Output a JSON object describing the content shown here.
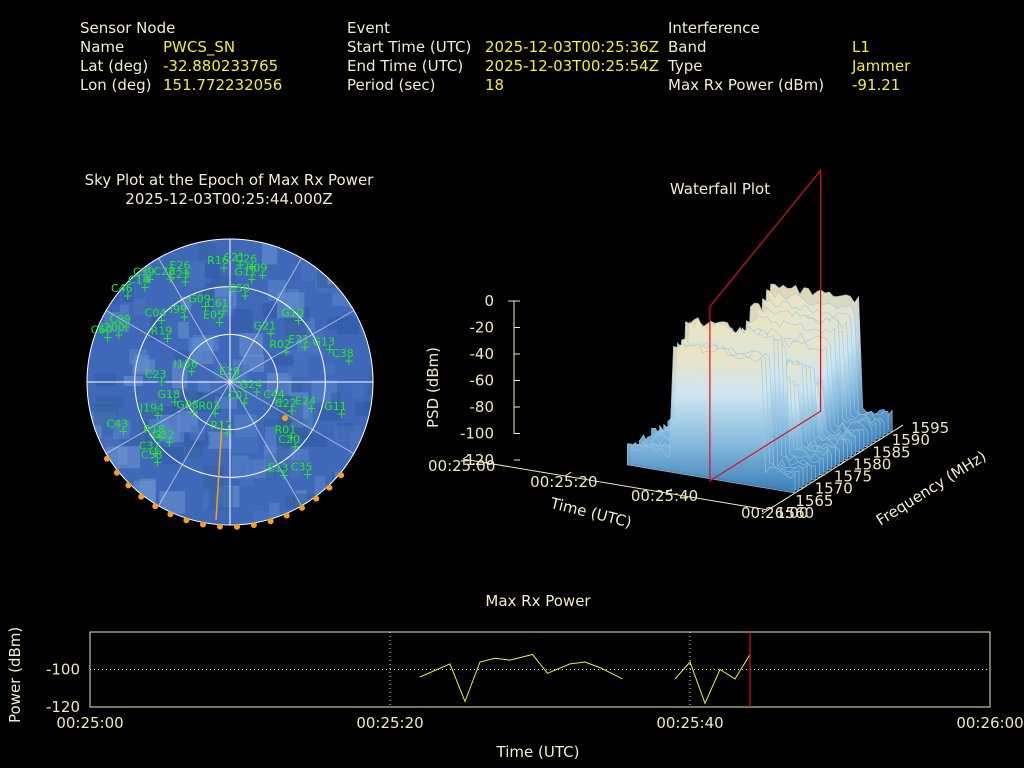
{
  "info": {
    "sensor": {
      "header": "Sensor Node",
      "name_label": "Name",
      "name_value": "PWCS_SN",
      "lat_label": "Lat (deg)",
      "lat_value": "-32.880233765",
      "lon_label": "Lon (deg)",
      "lon_value": "151.772232056"
    },
    "event": {
      "header": "Event",
      "start_label": "Start Time (UTC)",
      "start_value": "2025-12-03T00:25:36Z",
      "end_label": "End Time (UTC)",
      "end_value": "2025-12-03T00:25:54Z",
      "period_label": "Period (sec)",
      "period_value": "18"
    },
    "interference": {
      "header": "Interference",
      "band_label": "Band",
      "band_value": "L1",
      "type_label": "Type",
      "type_value": "Jammer",
      "power_label": "Max Rx Power (dBm)",
      "power_value": "-91.21"
    }
  },
  "colors": {
    "label": "#f4eccb",
    "value": "#f6ee2a",
    "satellite": "#22ee22",
    "track": "#f5a020",
    "sky_disc": "#3f68b8",
    "marker": "#dd1111",
    "axis": "#f0e8b8"
  },
  "chart_data": [
    {
      "type": "scatter",
      "title": "Sky Plot at the Epoch of Max Rx Power",
      "subtitle": "2025-12-03T00:25:44.000Z",
      "projection": "polar",
      "elevation_rings_deg": [
        0,
        30,
        60,
        90
      ],
      "satellites": [
        {
          "id": "R16",
          "az": 357,
          "el": 18
        },
        {
          "id": "C21",
          "az": 5,
          "el": 16
        },
        {
          "id": "R09",
          "az": 17,
          "el": 20
        },
        {
          "id": "C26",
          "az": 11,
          "el": 16
        },
        {
          "id": "E26",
          "az": 338,
          "el": 16
        },
        {
          "id": "C39",
          "az": 322,
          "el": 8
        },
        {
          "id": "C28",
          "az": 330,
          "el": 15
        },
        {
          "id": "E23",
          "az": 336,
          "el": 21
        },
        {
          "id": "C46",
          "az": 310,
          "el": 6
        },
        {
          "id": "C14",
          "az": 318,
          "el": 10
        },
        {
          "id": "G12",
          "az": 12,
          "el": 24
        },
        {
          "id": "C50",
          "az": 10,
          "el": 35
        },
        {
          "id": "G10",
          "az": 48,
          "el": 32
        },
        {
          "id": "G21",
          "az": 40,
          "el": 50
        },
        {
          "id": "C09",
          "az": 298,
          "el": 16
        },
        {
          "id": "C60",
          "az": 290,
          "el": 8
        },
        {
          "id": "J200",
          "az": 293,
          "el": 14
        },
        {
          "id": "C04",
          "az": 312,
          "el": 32
        },
        {
          "id": "I99",
          "az": 325,
          "el": 40
        },
        {
          "id": "G09",
          "az": 342,
          "el": 40
        },
        {
          "id": "C61",
          "az": 355,
          "el": 45
        },
        {
          "id": "E05",
          "az": 350,
          "el": 52
        },
        {
          "id": "R19",
          "az": 305,
          "el": 42
        },
        {
          "id": "R02",
          "az": 62,
          "el": 50
        },
        {
          "id": "E21",
          "az": 65,
          "el": 38
        },
        {
          "id": "G13",
          "az": 72,
          "el": 24
        },
        {
          "id": "C38",
          "az": 80,
          "el": 14
        },
        {
          "id": "I136",
          "az": 285,
          "el": 65
        },
        {
          "id": "C23",
          "az": 270,
          "el": 47
        },
        {
          "id": "G18",
          "az": 250,
          "el": 53
        },
        {
          "id": "J194",
          "az": 245,
          "el": 40
        },
        {
          "id": "C43",
          "az": 245,
          "el": 16
        },
        {
          "id": "E29",
          "az": 60,
          "el": 86
        },
        {
          "id": "G24",
          "az": 110,
          "el": 72
        },
        {
          "id": "C01",
          "az": 145,
          "el": 74
        },
        {
          "id": "R03",
          "az": 205,
          "el": 68
        },
        {
          "id": "G08",
          "az": 230,
          "el": 60
        },
        {
          "id": "C44",
          "az": 112,
          "el": 56
        },
        {
          "id": "C22",
          "az": 115,
          "el": 47
        },
        {
          "id": "E24",
          "az": 108,
          "el": 36
        },
        {
          "id": "G11",
          "az": 106,
          "el": 17
        },
        {
          "id": "R17",
          "az": 183,
          "el": 58
        },
        {
          "id": "R01",
          "az": 132,
          "el": 38
        },
        {
          "id": "C20",
          "az": 135,
          "el": 32
        },
        {
          "id": "R18",
          "az": 232,
          "el": 34
        },
        {
          "id": "G32",
          "az": 225,
          "el": 36
        },
        {
          "id": "C32",
          "az": 226,
          "el": 25
        },
        {
          "id": "E13",
          "az": 150,
          "el": 22
        },
        {
          "id": "C58",
          "az": 222,
          "el": 22
        },
        {
          "id": "C35",
          "az": 140,
          "el": 14
        }
      ],
      "interference_track_points": 17
    },
    {
      "type": "surface",
      "title": "Waterfall Plot",
      "xlabel": "Time (UTC)",
      "ylabel": "Frequency (MHz)",
      "zlabel": "PSD (dBm)",
      "x_ticks": [
        "00:25:00",
        "00:25:20",
        "00:25:40",
        "00:26:00"
      ],
      "y_ticks": [
        1560,
        1565,
        1570,
        1575,
        1580,
        1585,
        1590,
        1595
      ],
      "z_ticks": [
        0,
        -20,
        -40,
        -60,
        -80,
        -100,
        -120
      ],
      "zlim": [
        -120,
        0
      ],
      "ylim": [
        1560,
        1595
      ],
      "active_interval": [
        "00:25:36",
        "00:25:54"
      ],
      "marker_time": "00:25:44"
    },
    {
      "type": "line",
      "title": "Max Rx Power",
      "xlabel": "Time (UTC)",
      "ylabel": "Power (dBm)",
      "x_ticks": [
        "00:25:00",
        "00:25:20",
        "00:25:40",
        "00:26:00"
      ],
      "y_ticks": [
        -100,
        -120
      ],
      "xlim_sec": [
        0,
        60
      ],
      "ylim": [
        -120,
        -80
      ],
      "grid": "dotted",
      "marker_time_sec": 44,
      "series": [
        {
          "x_sec": [
            22,
            24,
            25,
            26,
            27,
            28,
            29.5,
            30.5,
            32,
            33,
            34,
            35.5
          ],
          "y": [
            -104,
            -97,
            -117,
            -96,
            -94,
            -95,
            -92,
            -102,
            -97,
            -96,
            -99,
            -105
          ]
        },
        {
          "x_sec": [
            39,
            40,
            41,
            42,
            43,
            44
          ],
          "y": [
            -105,
            -96,
            -118,
            -100,
            -105,
            -92
          ]
        }
      ]
    }
  ]
}
